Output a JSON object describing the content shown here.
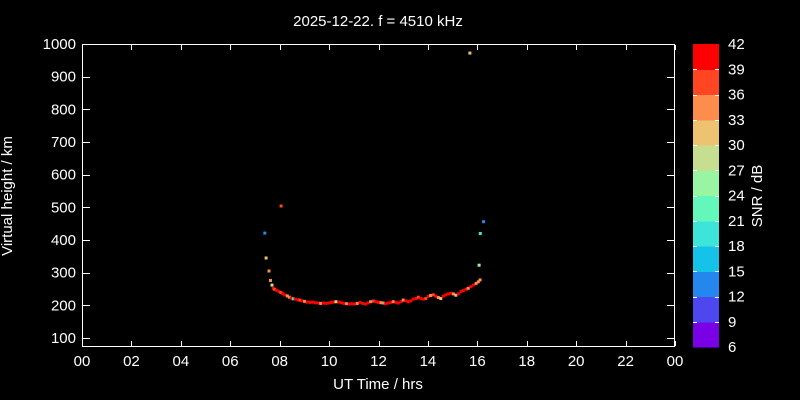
{
  "title": "2025-12-22. f = 4510 kHz",
  "chart_data": {
    "type": "scatter",
    "title": "2025-12-22. f = 4510 kHz",
    "xlabel": "UT Time / hrs",
    "ylabel": "Virtual height / km",
    "xlim": [
      0,
      24
    ],
    "ylim": [
      72,
      1000
    ],
    "grid": false,
    "background": "#000000",
    "frame_color": "#ffffff",
    "x_ticks": [
      {
        "v": 0,
        "label": "00"
      },
      {
        "v": 2,
        "label": "02"
      },
      {
        "v": 4,
        "label": "04"
      },
      {
        "v": 6,
        "label": "06"
      },
      {
        "v": 8,
        "label": "08"
      },
      {
        "v": 10,
        "label": "10"
      },
      {
        "v": 12,
        "label": "12"
      },
      {
        "v": 14,
        "label": "14"
      },
      {
        "v": 16,
        "label": "16"
      },
      {
        "v": 18,
        "label": "18"
      },
      {
        "v": 20,
        "label": "20"
      },
      {
        "v": 22,
        "label": "22"
      },
      {
        "v": 24,
        "label": "00"
      }
    ],
    "y_ticks": [
      100,
      200,
      300,
      400,
      500,
      600,
      700,
      800,
      900,
      1000
    ],
    "colorbar": {
      "label": "SNR / dB",
      "min": 6,
      "max": 42,
      "step": 3,
      "tick_labels": [
        "6",
        "9",
        "12",
        "15",
        "18",
        "21",
        "24",
        "27",
        "30",
        "33",
        "36",
        "39",
        "42"
      ],
      "colors_low_to_high": [
        "#7A00E6",
        "#4D47F0",
        "#2387EE",
        "#16C3E8",
        "#3DE4DA",
        "#63F7BB",
        "#9AF5A2",
        "#C5DE90",
        "#EDC271",
        "#FC8D4C",
        "#FF4521",
        "#FF0000"
      ]
    },
    "points_format": [
      "ut_hours",
      "virtual_height_km",
      "snr_db"
    ],
    "points": [
      [
        7.4,
        421,
        13.5
      ],
      [
        7.45,
        345,
        31.5
      ],
      [
        7.57,
        305,
        34.5
      ],
      [
        7.63,
        276,
        34.5
      ],
      [
        7.69,
        262,
        28.5
      ],
      [
        7.74,
        252,
        40.5
      ],
      [
        7.79,
        249,
        37.5
      ],
      [
        7.88,
        246,
        40.5
      ],
      [
        7.97,
        242,
        40.5
      ],
      [
        8.05,
        239,
        37.5
      ],
      [
        8.06,
        504,
        37.5
      ],
      [
        8.13,
        236,
        40.5
      ],
      [
        8.21,
        232,
        40.5
      ],
      [
        8.31,
        229,
        34.5
      ],
      [
        8.39,
        225,
        34.5
      ],
      [
        8.47,
        222,
        40.5
      ],
      [
        8.55,
        220,
        19.5
      ],
      [
        8.63,
        219,
        40.5
      ],
      [
        8.73,
        217,
        40.5
      ],
      [
        8.82,
        216,
        37.5
      ],
      [
        8.91,
        214,
        40.5
      ],
      [
        9.01,
        212,
        34.5
      ],
      [
        9.12,
        210,
        40.5
      ],
      [
        9.23,
        209,
        40.5
      ],
      [
        9.34,
        210,
        40.5
      ],
      [
        9.44,
        208,
        40.5
      ],
      [
        9.55,
        207,
        40.5
      ],
      [
        9.66,
        206,
        34.5
      ],
      [
        9.77,
        207,
        40.5
      ],
      [
        9.87,
        206,
        40.5
      ],
      [
        9.98,
        207,
        40.5
      ],
      [
        10.09,
        209,
        40.5
      ],
      [
        10.2,
        210,
        40.5
      ],
      [
        10.28,
        211,
        28.5
      ],
      [
        10.39,
        210,
        40.5
      ],
      [
        10.49,
        208,
        40.5
      ],
      [
        10.6,
        206,
        40.5
      ],
      [
        10.71,
        205,
        34.5
      ],
      [
        10.82,
        204,
        40.5
      ],
      [
        10.93,
        205,
        40.5
      ],
      [
        11.04,
        204,
        40.5
      ],
      [
        11.14,
        206,
        34.5
      ],
      [
        11.25,
        209,
        40.5
      ],
      [
        11.36,
        206,
        40.5
      ],
      [
        11.47,
        204,
        40.5
      ],
      [
        11.57,
        207,
        40.5
      ],
      [
        11.68,
        211,
        34.5
      ],
      [
        11.79,
        213,
        37.5
      ],
      [
        11.9,
        211,
        40.5
      ],
      [
        11.99,
        209,
        40.5
      ],
      [
        12.1,
        208,
        34.5
      ],
      [
        12.19,
        207,
        34.5
      ],
      [
        12.29,
        205,
        40.5
      ],
      [
        12.4,
        207,
        40.5
      ],
      [
        12.5,
        209,
        40.5
      ],
      [
        12.6,
        211,
        34.5
      ],
      [
        12.71,
        209,
        40.5
      ],
      [
        12.8,
        207,
        40.5
      ],
      [
        12.91,
        211,
        40.5
      ],
      [
        13.0,
        216,
        34.5
      ],
      [
        13.11,
        214,
        40.5
      ],
      [
        13.21,
        211,
        40.5
      ],
      [
        13.31,
        214,
        40.5
      ],
      [
        13.41,
        219,
        40.5
      ],
      [
        13.52,
        221,
        40.5
      ],
      [
        13.61,
        225,
        37.5
      ],
      [
        13.71,
        221,
        40.5
      ],
      [
        13.81,
        219,
        40.5
      ],
      [
        13.92,
        221,
        37.5
      ],
      [
        14.01,
        227,
        40.5
      ],
      [
        14.11,
        230,
        34.5
      ],
      [
        14.22,
        232,
        37.5
      ],
      [
        14.32,
        228,
        40.5
      ],
      [
        14.42,
        224,
        34.5
      ],
      [
        14.52,
        221,
        31.5
      ],
      [
        14.62,
        228,
        40.5
      ],
      [
        14.72,
        232,
        40.5
      ],
      [
        14.82,
        235,
        40.5
      ],
      [
        14.92,
        237,
        40.5
      ],
      [
        15.03,
        235,
        34.5
      ],
      [
        15.13,
        231,
        31.5
      ],
      [
        15.23,
        235,
        40.5
      ],
      [
        15.34,
        242,
        40.5
      ],
      [
        15.43,
        245,
        40.5
      ],
      [
        15.54,
        249,
        40.5
      ],
      [
        15.63,
        252,
        34.5
      ],
      [
        15.7,
        972,
        31.5
      ],
      [
        15.74,
        257,
        40.5
      ],
      [
        15.84,
        262,
        40.5
      ],
      [
        15.95,
        267,
        34.5
      ],
      [
        16.04,
        272,
        34.5
      ],
      [
        16.07,
        323,
        25.5
      ],
      [
        16.11,
        278,
        34.5
      ],
      [
        16.12,
        420,
        19.5
      ],
      [
        16.25,
        456,
        13.5
      ]
    ]
  }
}
